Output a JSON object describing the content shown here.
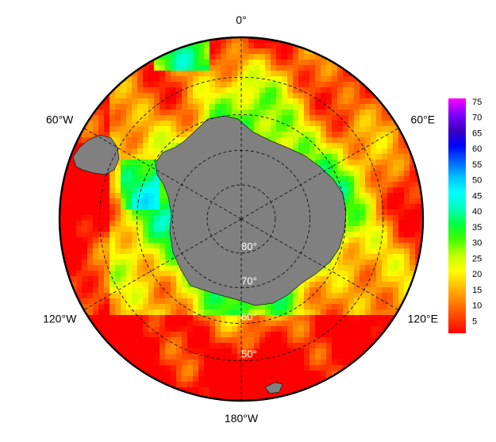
{
  "map": {
    "projection": "south-polar-stereographic",
    "longitude_labels": [
      {
        "lon": 0,
        "text": "0°"
      },
      {
        "lon": -60,
        "text": "60°W"
      },
      {
        "lon": 60,
        "text": "60°E"
      },
      {
        "lon": -120,
        "text": "120°W"
      },
      {
        "lon": 120,
        "text": "120°E"
      },
      {
        "lon": 180,
        "text": "180°W"
      }
    ],
    "latitude_labels": [
      {
        "lat": -80,
        "text": "80°"
      },
      {
        "lat": -70,
        "text": "70°"
      },
      {
        "lat": -60,
        "text": "60°"
      },
      {
        "lat": -50,
        "text": "50°"
      }
    ],
    "land_color": "#808080",
    "ocean_field_colors_description": "sea-surface field shaded on 0–75 scale"
  },
  "colorbar": {
    "ticks": [
      "75",
      "70",
      "65",
      "60",
      "55",
      "50",
      "45",
      "40",
      "35",
      "30",
      "25",
      "20",
      "15",
      "10",
      "5"
    ],
    "stops": [
      "#ff0000",
      "#ff4000",
      "#ff8000",
      "#ffbf00",
      "#ffff00",
      "#bfff00",
      "#40ff00",
      "#00ff40",
      "#00ffbf",
      "#00ffff",
      "#00bfff",
      "#0060ff",
      "#0000ff",
      "#4000c0",
      "#8000ff",
      "#ff00ff"
    ],
    "min": 0,
    "max": 75
  }
}
